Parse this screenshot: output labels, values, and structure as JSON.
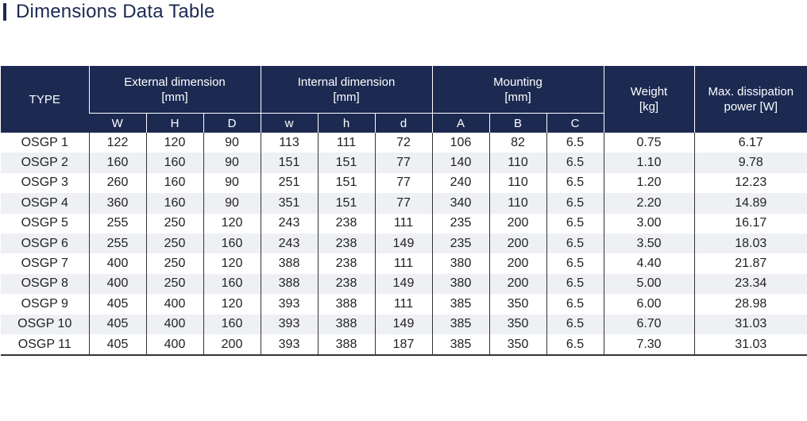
{
  "title": "Dimensions Data Table",
  "table": {
    "type_header": "TYPE",
    "groups": {
      "external": {
        "line1": "External dimension",
        "line2": "[mm]"
      },
      "internal": {
        "line1": "Internal dimension",
        "line2": "[mm]"
      },
      "mounting": {
        "line1": "Mounting",
        "line2": "[mm]"
      },
      "weight": {
        "line1": "Weight",
        "line2": "[kg]"
      },
      "power": {
        "line1": "Max. dissipation",
        "line2": "power [W]"
      }
    },
    "subheaders": [
      "W",
      "H",
      "D",
      "w",
      "h",
      "d",
      "A",
      "B",
      "C"
    ],
    "rows": [
      [
        "OSGP 1",
        "122",
        "120",
        "90",
        "113",
        "111",
        "72",
        "106",
        "82",
        "6.5",
        "0.75",
        "6.17"
      ],
      [
        "OSGP 2",
        "160",
        "160",
        "90",
        "151",
        "151",
        "77",
        "140",
        "110",
        "6.5",
        "1.10",
        "9.78"
      ],
      [
        "OSGP 3",
        "260",
        "160",
        "90",
        "251",
        "151",
        "77",
        "240",
        "110",
        "6.5",
        "1.20",
        "12.23"
      ],
      [
        "OSGP 4",
        "360",
        "160",
        "90",
        "351",
        "151",
        "77",
        "340",
        "110",
        "6.5",
        "2.20",
        "14.89"
      ],
      [
        "OSGP 5",
        "255",
        "250",
        "120",
        "243",
        "238",
        "111",
        "235",
        "200",
        "6.5",
        "3.00",
        "16.17"
      ],
      [
        "OSGP 6",
        "255",
        "250",
        "160",
        "243",
        "238",
        "149",
        "235",
        "200",
        "6.5",
        "3.50",
        "18.03"
      ],
      [
        "OSGP 7",
        "400",
        "250",
        "120",
        "388",
        "238",
        "111",
        "380",
        "200",
        "6.5",
        "4.40",
        "21.87"
      ],
      [
        "OSGP 8",
        "400",
        "250",
        "160",
        "388",
        "238",
        "149",
        "380",
        "200",
        "6.5",
        "5.00",
        "23.34"
      ],
      [
        "OSGP 9",
        "405",
        "400",
        "120",
        "393",
        "388",
        "111",
        "385",
        "350",
        "6.5",
        "6.00",
        "28.98"
      ],
      [
        "OSGP 10",
        "405",
        "400",
        "160",
        "393",
        "388",
        "149",
        "385",
        "350",
        "6.5",
        "6.70",
        "31.03"
      ],
      [
        "OSGP 11",
        "405",
        "400",
        "200",
        "393",
        "388",
        "187",
        "385",
        "350",
        "6.5",
        "7.30",
        "31.03"
      ]
    ]
  },
  "colors": {
    "header_bg": "#1c2a52",
    "stripe_bg": "#eef0f3",
    "text": "#222222"
  }
}
